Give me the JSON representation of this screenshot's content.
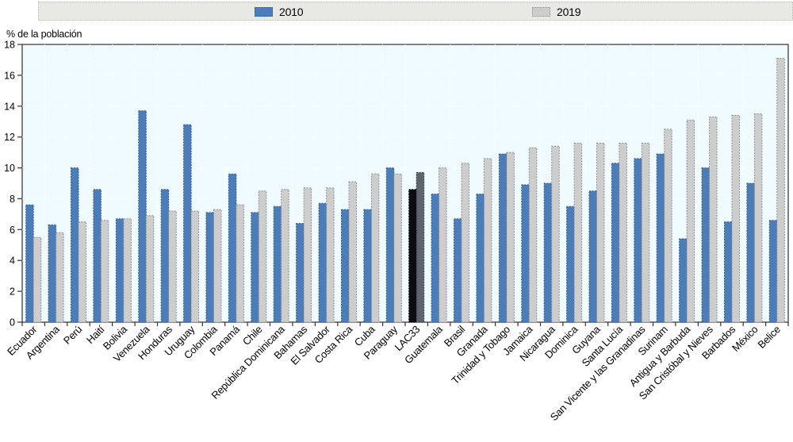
{
  "legend": {
    "items": [
      {
        "label": "2010",
        "color": "#4d7db8"
      },
      {
        "label": "2019",
        "color": "#cdcdcd"
      }
    ]
  },
  "y_axis_title": "% de la población",
  "chart_data": {
    "type": "bar",
    "title": "",
    "xlabel": "",
    "ylabel": "% de la población",
    "ylim": [
      0,
      18
    ],
    "yticks": [
      0,
      2,
      4,
      6,
      8,
      10,
      12,
      14,
      16,
      18
    ],
    "grid": true,
    "legend_position": "top",
    "categories": [
      "Ecuador",
      "Argentina",
      "Perú",
      "Haití",
      "Bolivia",
      "Venezuela",
      "Honduras",
      "Uruguay",
      "Colombia",
      "Panamá",
      "Chile",
      "República Dominicana",
      "Bahamas",
      "El Salvador",
      "Costa Rica",
      "Cuba",
      "Paraguay",
      "LAC33",
      "Guatemala",
      "Brasil",
      "Granada",
      "Trinidad y Tobago",
      "Jamaica",
      "Nicaragua",
      "Dominica",
      "Guyana",
      "Santa Lucía",
      "San Vicente y las Granadinas",
      "Surinam",
      "Antigua y Barbuda",
      "San Cristóbal y Nieves",
      "Barbados",
      "México",
      "Belice"
    ],
    "series": [
      {
        "name": "2010",
        "color": "#4d7db8",
        "border_color": "#2d5b93",
        "values": [
          7.6,
          6.3,
          10.0,
          8.6,
          6.7,
          13.7,
          8.6,
          12.8,
          7.1,
          9.6,
          7.1,
          7.5,
          6.4,
          7.7,
          7.3,
          7.3,
          10.0,
          8.6,
          8.3,
          6.7,
          8.3,
          10.9,
          8.9,
          9.0,
          7.5,
          8.5,
          10.3,
          10.6,
          10.9,
          5.4,
          10.0,
          6.5,
          9.0,
          6.6
        ]
      },
      {
        "name": "2019",
        "color": "#cdcdcd",
        "border_color": "#8f8f8f",
        "values": [
          5.5,
          5.8,
          6.5,
          6.6,
          6.7,
          6.9,
          7.2,
          7.2,
          7.3,
          7.6,
          8.5,
          8.6,
          8.7,
          8.7,
          9.1,
          9.6,
          9.6,
          9.7,
          10.0,
          10.3,
          10.6,
          11.0,
          11.3,
          11.4,
          11.6,
          11.6,
          11.6,
          11.6,
          12.5,
          13.1,
          13.3,
          13.4,
          13.5,
          17.1
        ]
      }
    ],
    "highlight_category": "LAC33",
    "highlight_colors": {
      "2010": "#0c0c13",
      "2019": "#5d646e",
      "border_2010": "#000000",
      "border_2019": "#383d44"
    }
  },
  "colors": {
    "plot_background": "#effbfe",
    "plot_border": "#4d4d4d",
    "gridline": "#ffffff",
    "axis_text": "#000000",
    "legend_strip_background": "#e8e8e4"
  }
}
